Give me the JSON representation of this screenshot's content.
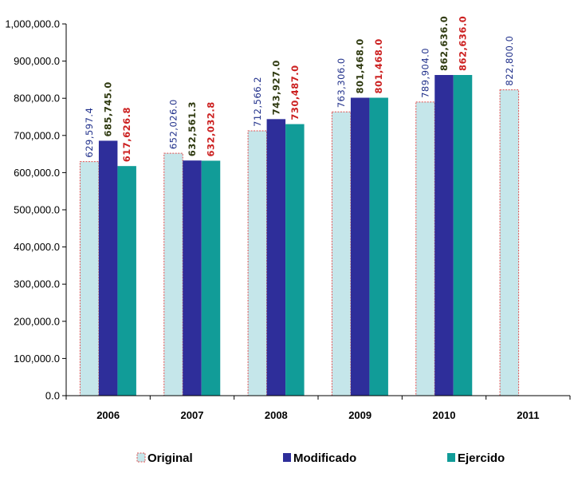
{
  "chart_data": {
    "type": "bar",
    "categories": [
      "2006",
      "2007",
      "2008",
      "2009",
      "2010",
      "2011"
    ],
    "series": [
      {
        "name": "Original",
        "values": [
          629597.4,
          652026.0,
          712566.2,
          763306.0,
          789904.0,
          822800.0
        ],
        "labels": [
          "629,597.4",
          "652,026.0",
          "712,566.2",
          "763,306.0",
          "789,904.0",
          "822,800.0"
        ],
        "color": "#c5e6ea",
        "border_color": "#e05050",
        "label_color": "#1f2f8a"
      },
      {
        "name": "Modificado",
        "values": [
          685745.0,
          632561.3,
          743927.0,
          801468.0,
          862636.0,
          null
        ],
        "labels": [
          "685,745.0",
          "632,561.3",
          "743,927.0",
          "801,468.0",
          "862,636.0",
          ""
        ],
        "color": "#2e2e9a",
        "label_color": "#2f3a10"
      },
      {
        "name": "Ejercido",
        "values": [
          617626.8,
          632032.8,
          730487.0,
          801468.0,
          862636.0,
          null
        ],
        "labels": [
          "617,626.8",
          "632,032.8",
          "730,487.0",
          "801,468.0",
          "862,636.0",
          ""
        ],
        "color": "#119c98",
        "label_color": "#cc2020"
      }
    ],
    "ylim": [
      0,
      1000000
    ],
    "yticks": [
      0,
      100000,
      200000,
      300000,
      400000,
      500000,
      600000,
      700000,
      800000,
      900000,
      1000000
    ],
    "ytick_labels": [
      "0.0",
      "100,000.0",
      "200,000.0",
      "300,000.0",
      "400,000.0",
      "500,000.0",
      "600,000.0",
      "700,000.0",
      "800,000.0",
      "900,000.0",
      "1,000,000.0"
    ],
    "title": "",
    "xlabel": "",
    "ylabel": "",
    "grid": false,
    "legend_position": "bottom"
  }
}
